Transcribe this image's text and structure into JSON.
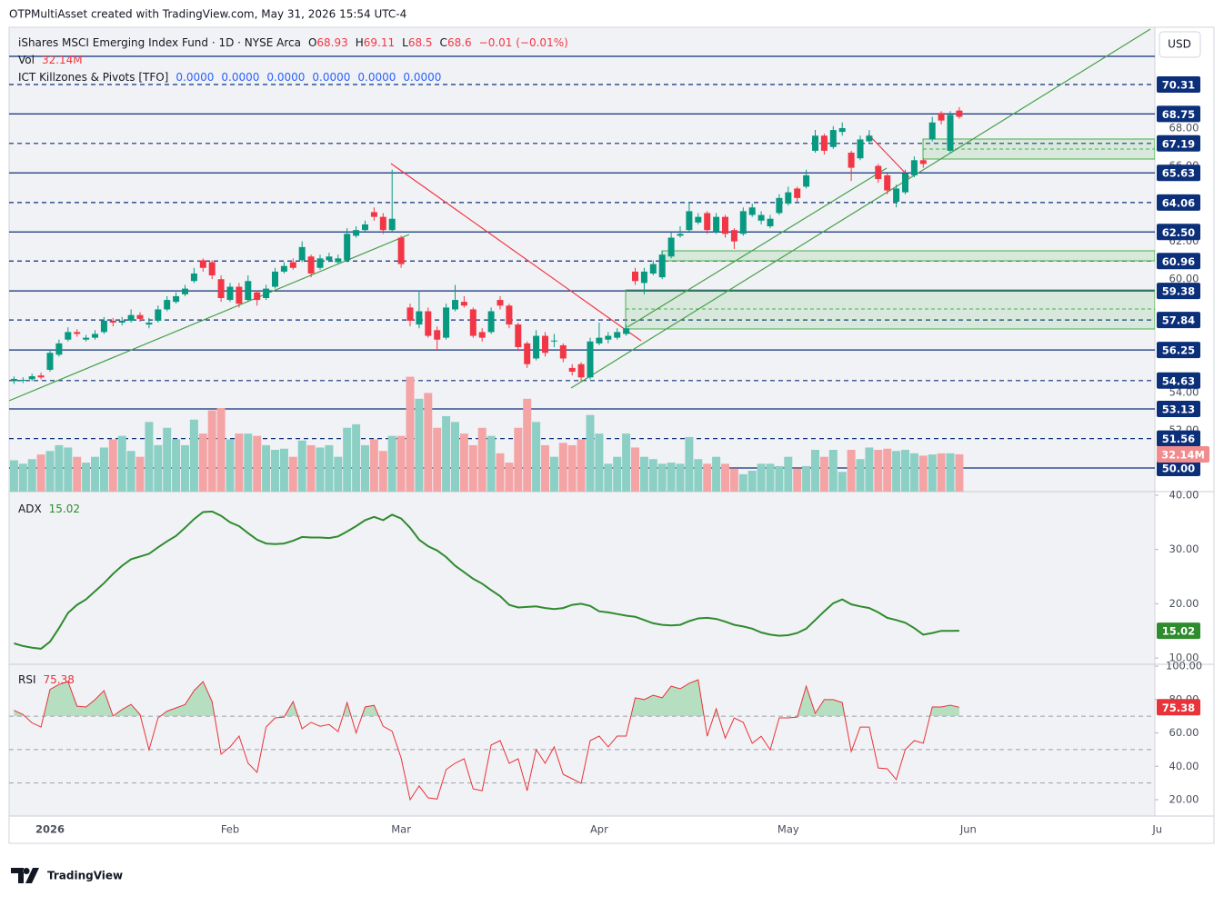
{
  "header": {
    "attribution": "OTPMultiAsset created with TradingView.com, May 31, 2026 15:54 UTC-4",
    "symbol": "iShares MSCI Emerging Index Fund · 1D · NYSE Arca",
    "letters": {
      "open": "O",
      "high": "H",
      "low": "L",
      "close": "C"
    },
    "change": "−0.01 (−0.01%)",
    "volume_name": "Vol",
    "indicator": "ICT Killzones & Pivots [TFO]",
    "indicator_values": [
      "0.0000",
      "0.0000",
      "0.0000",
      "0.0000",
      "0.0000",
      "0.0000"
    ],
    "currency": "USD"
  },
  "footer": {
    "brand": "TradingView"
  },
  "time_axis": {
    "categories": [
      null,
      null,
      null,
      null,
      "2026",
      null,
      null,
      null,
      null,
      null,
      null,
      null,
      null,
      null,
      null,
      null,
      null,
      null,
      null,
      null,
      null,
      null,
      null,
      null,
      "Feb",
      null,
      null,
      null,
      null,
      null,
      null,
      null,
      null,
      null,
      null,
      null,
      null,
      null,
      null,
      null,
      null,
      null,
      null,
      "Mar",
      null,
      null,
      null,
      null,
      null,
      null,
      null,
      null,
      null,
      null,
      null,
      null,
      null,
      null,
      null,
      null,
      null,
      null,
      null,
      null,
      null,
      "Apr",
      null,
      null,
      null,
      null,
      null,
      null,
      null,
      null,
      null,
      null,
      null,
      null,
      null,
      null,
      null,
      null,
      null,
      null,
      null,
      null,
      "May",
      null,
      null,
      null,
      null,
      null,
      null,
      null,
      null,
      null,
      null,
      null,
      null,
      null,
      null,
      null,
      null,
      null,
      null,
      null,
      "Jun",
      null,
      null,
      null,
      null,
      null,
      null,
      null,
      null,
      null,
      null,
      null,
      null,
      null,
      null,
      null,
      null,
      null,
      null,
      null,
      null,
      "Ju"
    ]
  },
  "chart_data": [
    {
      "type": "candlestick",
      "up_color": "#089981",
      "down_color": "#f23645",
      "ylim": [
        48.75,
        73.34
      ],
      "yticks": [
        {
          "value": 68,
          "label": "68.00"
        },
        {
          "value": 66,
          "label": "66.00"
        },
        {
          "value": 62,
          "label": "62.00"
        },
        {
          "value": 60,
          "label": "60.00"
        },
        {
          "value": 54,
          "label": "54.00"
        },
        {
          "value": 52,
          "label": "52.00"
        }
      ],
      "levels": [
        {
          "value": 70.31,
          "dashed": true
        },
        {
          "value": 68.75,
          "dashed": false
        },
        {
          "value": 67.19,
          "dashed": true
        },
        {
          "value": 65.63,
          "dashed": false
        },
        {
          "value": 64.06,
          "dashed": true
        },
        {
          "value": 62.5,
          "label": "62.50",
          "dashed": false
        },
        {
          "value": 60.96,
          "dashed": true
        },
        {
          "value": 59.38,
          "dashed": false
        },
        {
          "value": 57.84,
          "dashed": true
        },
        {
          "value": 56.25,
          "dashed": false
        },
        {
          "value": 54.63,
          "dashed": true
        },
        {
          "value": 53.13,
          "dashed": false
        },
        {
          "value": 51.56,
          "dashed": true
        },
        {
          "value": 50,
          "label": "50.00",
          "dashed": false
        }
      ],
      "level_color": "#0c2f7a",
      "open": [
        54.6,
        54.62,
        54.7,
        54.9,
        55.2,
        56.0,
        56.8,
        57.2,
        56.8,
        56.9,
        57.2,
        57.8,
        57.7,
        57.8,
        58.1,
        57.6,
        57.8,
        58.4,
        58.8,
        59.2,
        59.9,
        61.0,
        60.9,
        60.0,
        58.9,
        59.6,
        58.9,
        59.3,
        59.0,
        59.6,
        60.4,
        60.9,
        61.0,
        61.2,
        60.6,
        61.0,
        60.9,
        61.0,
        62.3,
        62.6,
        63.55,
        63.3,
        62.6,
        62.2,
        58.5,
        57.6,
        58.3,
        57.3,
        56.9,
        58.4,
        58.8,
        58.4,
        57.2,
        57.2,
        58.9,
        58.6,
        57.6,
        56.6,
        55.8,
        57.0,
        56.7,
        56.5,
        55.3,
        55.5,
        54.8,
        56.6,
        56.8,
        56.9,
        57.1,
        60.4,
        59.8,
        60.3,
        60.1,
        61.2,
        62.3,
        62.6,
        63.0,
        63.5,
        62.5,
        63.3,
        62.6,
        62.4,
        63.4,
        63.1,
        62.8,
        63.5,
        64.0,
        64.8,
        64.9,
        66.8,
        67.6,
        67.0,
        67.8,
        66.7,
        66.4,
        67.3,
        66.0,
        65.5,
        64.1,
        64.6,
        65.5,
        66.3,
        67.4,
        68.8,
        66.8,
        68.93
      ],
      "high": [
        54.85,
        54.8,
        55.0,
        55.05,
        56.25,
        56.8,
        57.45,
        57.35,
        57.05,
        57.3,
        58.0,
        57.95,
        58.0,
        58.4,
        58.25,
        57.95,
        58.6,
        59.1,
        59.3,
        59.7,
        60.6,
        61.1,
        61.0,
        60.2,
        59.8,
        59.8,
        60.2,
        59.4,
        59.7,
        60.6,
        60.9,
        61.1,
        62.0,
        61.3,
        61.3,
        61.4,
        61.3,
        62.7,
        62.8,
        63.1,
        63.8,
        63.5,
        65.8,
        62.3,
        58.7,
        59.4,
        58.5,
        57.5,
        58.7,
        59.7,
        59.1,
        58.5,
        57.4,
        58.5,
        59.1,
        58.7,
        57.7,
        56.7,
        57.3,
        57.2,
        57.1,
        56.6,
        55.5,
        55.6,
        56.9,
        57.7,
        57.2,
        57.4,
        57.6,
        60.6,
        60.6,
        61.0,
        61.5,
        62.5,
        62.8,
        64.1,
        63.5,
        63.6,
        63.5,
        63.4,
        62.7,
        63.8,
        64.0,
        63.6,
        63.4,
        64.5,
        64.9,
        64.9,
        65.8,
        67.9,
        67.7,
        68.1,
        68.3,
        66.8,
        67.6,
        67.9,
        66.1,
        65.6,
        65.0,
        65.8,
        66.5,
        66.4,
        68.6,
        68.9,
        68.9,
        69.11
      ],
      "low": [
        54.45,
        54.5,
        54.6,
        54.7,
        55.1,
        55.9,
        56.7,
        56.95,
        56.7,
        56.8,
        57.1,
        57.5,
        57.55,
        57.7,
        57.75,
        57.4,
        57.7,
        58.3,
        58.7,
        59.1,
        59.8,
        60.4,
        60.0,
        58.8,
        58.8,
        58.5,
        58.8,
        58.6,
        58.9,
        59.5,
        60.3,
        60.5,
        60.9,
        60.1,
        60.5,
        60.9,
        60.8,
        60.9,
        62.2,
        62.5,
        63.1,
        62.4,
        62.5,
        60.6,
        57.5,
        57.4,
        56.9,
        56.2,
        56.8,
        58.3,
        58.5,
        56.9,
        56.7,
        57.1,
        58.4,
        57.4,
        56.2,
        55.3,
        55.7,
        55.9,
        56.4,
        55.6,
        54.9,
        54.6,
        54.7,
        56.5,
        56.6,
        56.8,
        57.0,
        59.7,
        59.2,
        60.2,
        60.0,
        61.1,
        62.2,
        62.5,
        62.9,
        62.4,
        62.4,
        62.2,
        61.6,
        62.3,
        63.3,
        62.9,
        62.7,
        63.4,
        63.9,
        64.1,
        64.8,
        66.7,
        66.6,
        66.9,
        67.6,
        65.2,
        66.3,
        67.2,
        65.1,
        64.5,
        63.8,
        64.5,
        65.4,
        65.9,
        67.3,
        68.2,
        66.7,
        68.5
      ],
      "close": [
        54.72,
        54.67,
        54.86,
        54.8,
        56.1,
        56.6,
        57.2,
        57.1,
        56.9,
        57.1,
        57.8,
        57.7,
        57.8,
        58.1,
        57.9,
        57.7,
        58.4,
        58.9,
        59.1,
        59.5,
        60.3,
        60.6,
        60.2,
        59.0,
        59.6,
        58.7,
        59.9,
        58.9,
        59.5,
        60.4,
        60.7,
        60.6,
        61.7,
        60.3,
        61.1,
        61.2,
        61.1,
        62.4,
        62.6,
        62.9,
        63.3,
        62.6,
        63.2,
        60.8,
        57.8,
        58.3,
        57.0,
        56.8,
        58.5,
        58.9,
        58.6,
        57.0,
        56.9,
        58.3,
        58.6,
        57.6,
        56.4,
        55.5,
        57.0,
        56.1,
        56.75,
        55.8,
        55.1,
        54.8,
        56.7,
        56.9,
        57.0,
        57.2,
        57.4,
        59.9,
        60.4,
        60.8,
        61.3,
        62.2,
        62.4,
        63.6,
        63.3,
        62.6,
        63.3,
        62.4,
        62.0,
        63.6,
        63.8,
        63.4,
        63.2,
        64.3,
        64.6,
        64.3,
        65.5,
        67.6,
        66.8,
        67.9,
        68.0,
        65.9,
        67.4,
        67.6,
        65.3,
        64.7,
        64.8,
        65.6,
        66.3,
        66.1,
        68.3,
        68.4,
        68.7,
        68.6
      ]
    },
    {
      "type": "bar",
      "name": "Vol",
      "up_color": "#8ccfc4",
      "down_color": "#f5a4a6",
      "label_color": "#f28b8d",
      "ylim": [
        0,
        400
      ],
      "values": [
        27,
        24,
        28,
        32,
        35,
        40,
        38,
        30,
        25,
        30,
        38,
        45,
        48,
        35,
        30,
        60,
        40,
        55,
        45,
        40,
        62,
        50,
        70,
        72,
        45,
        50,
        50,
        48,
        40,
        36,
        37,
        30,
        44,
        40,
        38,
        40,
        30,
        55,
        58,
        40,
        45,
        35,
        48,
        48,
        99,
        80,
        85,
        55,
        65,
        60,
        50,
        40,
        55,
        48,
        33,
        25,
        55,
        80,
        60,
        40,
        30,
        42,
        40,
        45,
        66,
        50,
        24,
        30,
        50,
        38,
        30,
        28,
        24,
        25,
        24,
        47,
        28,
        24,
        30,
        24,
        20,
        15,
        18,
        24,
        24,
        22,
        30,
        20,
        22,
        36,
        30,
        36,
        17,
        36,
        28,
        38,
        36,
        37,
        35,
        36,
        33,
        31,
        32,
        33,
        33,
        32.14
      ],
      "value_labels": [
        null,
        null,
        null,
        null,
        null,
        null,
        null,
        null,
        null,
        null,
        null,
        null,
        null,
        null,
        null,
        null,
        null,
        null,
        null,
        null,
        null,
        null,
        null,
        null,
        null,
        null,
        null,
        null,
        null,
        null,
        null,
        null,
        null,
        null,
        null,
        null,
        null,
        null,
        null,
        null,
        null,
        null,
        null,
        null,
        null,
        null,
        null,
        null,
        null,
        null,
        null,
        null,
        null,
        null,
        null,
        null,
        null,
        null,
        null,
        null,
        null,
        null,
        null,
        null,
        null,
        null,
        null,
        null,
        null,
        null,
        null,
        null,
        null,
        null,
        null,
        null,
        null,
        null,
        null,
        null,
        null,
        null,
        null,
        null,
        null,
        null,
        null,
        null,
        null,
        null,
        null,
        null,
        null,
        null,
        null,
        null,
        null,
        null,
        null,
        null,
        null,
        null,
        null,
        null,
        null,
        "32.14M"
      ]
    },
    {
      "type": "line",
      "name": "ADX",
      "color": "#2e8b2e",
      "ylim": [
        8.84,
        40.66
      ],
      "yticks": [
        {
          "value": 40,
          "label": "40.00"
        },
        {
          "value": 30,
          "label": "30.00"
        },
        {
          "value": 20,
          "label": "20.00"
        },
        {
          "value": 10,
          "label": "10.00"
        }
      ],
      "values": [
        12.7,
        12.2,
        11.9,
        11.7,
        13.0,
        15.5,
        18.3,
        19.8,
        20.8,
        22.3,
        23.8,
        25.5,
        27.0,
        28.2,
        28.7,
        29.2,
        30.4,
        31.5,
        32.5,
        34.0,
        35.6,
        36.9,
        37.0,
        36.2,
        35.0,
        34.3,
        33.0,
        31.8,
        31.1,
        31.0,
        31.1,
        31.6,
        32.3,
        32.2,
        32.2,
        32.1,
        32.4,
        33.3,
        34.3,
        35.4,
        36.0,
        35.4,
        36.4,
        35.7,
        34.0,
        31.8,
        30.6,
        29.8,
        28.6,
        27.0,
        25.8,
        24.6,
        23.7,
        22.5,
        21.4,
        19.8,
        19.3,
        19.4,
        19.5,
        19.2,
        19.0,
        19.2,
        19.8,
        20.0,
        19.6,
        18.6,
        18.4,
        18.1,
        17.8,
        17.6,
        17.0,
        16.4,
        16.1,
        16.0,
        16.1,
        16.8,
        17.3,
        17.4,
        17.2,
        16.7,
        16.1,
        15.8,
        15.4,
        14.7,
        14.3,
        14.1,
        14.2,
        14.6,
        15.4,
        17.0,
        18.6,
        20.1,
        20.8,
        19.9,
        19.5,
        19.2,
        18.4,
        17.4,
        17.0,
        16.5,
        15.5,
        14.3,
        14.6,
        15.0,
        15.0,
        15.02
      ]
    },
    {
      "type": "line",
      "name": "RSI",
      "color": "#e8333a",
      "fill_color": "#8fd19e",
      "overbought": 70,
      "bands": [
        70,
        50,
        30
      ],
      "ylim": [
        10.2,
        101.1
      ],
      "yticks": [
        {
          "value": 100,
          "label": "100.00"
        },
        {
          "value": 80,
          "label": "80.00"
        },
        {
          "value": 60,
          "label": "60.00"
        },
        {
          "value": 40,
          "label": "40.00"
        },
        {
          "value": 20,
          "label": "20.00"
        }
      ],
      "values": [
        73.5,
        71,
        66,
        63.5,
        86,
        89,
        90.7,
        76,
        75.5,
        79.9,
        85.3,
        70.1,
        74,
        77.1,
        71,
        49.9,
        69,
        73,
        75,
        77,
        85.3,
        90.7,
        78.8,
        47.2,
        51.6,
        58.1,
        41.8,
        36.3,
        63.5,
        69,
        69.5,
        78.8,
        62.5,
        66.3,
        64,
        65,
        60.8,
        78.2,
        60,
        75.5,
        76.5,
        64,
        61,
        45,
        20,
        28.2,
        21.1,
        20.4,
        38,
        41.8,
        44.5,
        26.5,
        25.4,
        52.7,
        55.4,
        41.8,
        44.5,
        25.4,
        50,
        41.8,
        51.6,
        35.2,
        32.5,
        29.8,
        55.4,
        58.1,
        51.6,
        58.1,
        58.1,
        81,
        80,
        82.6,
        81,
        88,
        86.4,
        89.7,
        91.8,
        58,
        74.5,
        56.9,
        69,
        66.3,
        53.8,
        58,
        49.9,
        69,
        69,
        69.5,
        88,
        71.7,
        79.9,
        79.9,
        78.2,
        48.8,
        63.5,
        63.5,
        39,
        38.5,
        32,
        50,
        55.4,
        53.8,
        75.5,
        75.5,
        76.6,
        75.38
      ]
    }
  ]
}
